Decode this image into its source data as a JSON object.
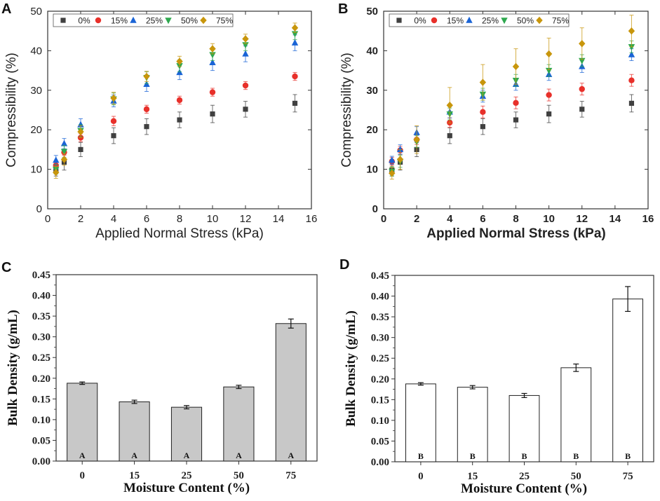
{
  "panels": {
    "A": {
      "letter": "A",
      "chart_data": {
        "type": "scatter",
        "xlabel": "Applied Normal Stress (kPa)",
        "ylabel": "Compressibility (%)",
        "xlim": [
          0,
          16
        ],
        "ylim": [
          0,
          50
        ],
        "xticks": [
          0,
          2,
          4,
          6,
          8,
          10,
          12,
          14,
          16
        ],
        "yticks": [
          0,
          10,
          20,
          30,
          40,
          50
        ],
        "x": [
          0.5,
          1,
          2,
          4,
          6,
          8,
          10,
          12,
          15
        ],
        "series": [
          {
            "name": "0%",
            "color": "#404040",
            "marker": "square",
            "values": [
              9.8,
              11.8,
              15.0,
              18.5,
              20.8,
              22.5,
              24.0,
              25.2,
              26.7
            ],
            "errors": [
              1.5,
              2.0,
              1.8,
              2.0,
              2.0,
              2.0,
              2.2,
              2.0,
              2.2
            ]
          },
          {
            "name": "15%",
            "color": "#e8302a",
            "marker": "circle",
            "values": [
              11.0,
              14.3,
              18.0,
              22.2,
              25.2,
              27.5,
              29.5,
              31.2,
              33.5
            ],
            "errors": [
              0.8,
              0.8,
              1.0,
              1.2,
              1.0,
              1.0,
              1.0,
              1.0,
              1.0
            ]
          },
          {
            "name": "25%",
            "color": "#1a64d6",
            "marker": "triangle-up",
            "values": [
              12.3,
              16.5,
              21.3,
              27.3,
              31.5,
              34.5,
              37.0,
              39.2,
              42.0
            ],
            "errors": [
              1.2,
              1.3,
              1.5,
              1.5,
              1.8,
              1.8,
              2.0,
              2.0,
              2.0
            ]
          },
          {
            "name": "50%",
            "color": "#2fa84f",
            "marker": "triangle-down",
            "values": [
              10.0,
              14.5,
              19.8,
              27.8,
              33.2,
              36.2,
              39.0,
              41.5,
              44.3
            ],
            "errors": [
              1.2,
              1.5,
              1.5,
              1.5,
              1.5,
              1.5,
              1.5,
              1.5,
              1.5
            ]
          },
          {
            "name": "75%",
            "color": "#c8960c",
            "marker": "diamond",
            "values": [
              9.2,
              12.5,
              19.5,
              28.0,
              33.5,
              37.3,
              40.5,
              43.0,
              45.8
            ],
            "errors": [
              1.5,
              1.5,
              1.5,
              1.5,
              1.3,
              1.3,
              1.3,
              1.2,
              1.2
            ]
          }
        ]
      }
    },
    "B": {
      "letter": "B",
      "chart_data": {
        "type": "scatter",
        "xlabel": "Applied Normal Stress (kPa)",
        "ylabel": "Compressibility (%)",
        "xlim": [
          0,
          16
        ],
        "ylim": [
          0,
          50
        ],
        "xticks": [
          0,
          2,
          4,
          6,
          8,
          10,
          12,
          14,
          16
        ],
        "yticks": [
          0,
          10,
          20,
          30,
          40,
          50
        ],
        "x": [
          0.5,
          1,
          2,
          4,
          6,
          8,
          10,
          12,
          15
        ],
        "series": [
          {
            "name": "0%",
            "color": "#404040",
            "marker": "square",
            "values": [
              9.8,
              11.8,
              15.0,
              18.5,
              20.8,
              22.5,
              24.0,
              25.2,
              26.7
            ],
            "errors": [
              1.5,
              2.0,
              1.8,
              2.0,
              2.0,
              2.0,
              2.2,
              2.0,
              2.2
            ]
          },
          {
            "name": "15%",
            "color": "#e8302a",
            "marker": "circle",
            "values": [
              12.0,
              14.8,
              17.5,
              21.8,
              24.5,
              26.8,
              28.8,
              30.3,
              32.5
            ],
            "errors": [
              1.0,
              1.0,
              1.2,
              1.2,
              1.5,
              1.5,
              1.5,
              1.5,
              1.5
            ]
          },
          {
            "name": "25%",
            "color": "#1a64d6",
            "marker": "triangle-up",
            "values": [
              12.3,
              15.0,
              19.3,
              24.5,
              28.5,
              31.5,
              34.0,
              36.0,
              39.0
            ],
            "errors": [
              1.0,
              1.2,
              1.5,
              1.5,
              1.5,
              1.5,
              1.5,
              1.5,
              1.5
            ]
          },
          {
            "name": "50%",
            "color": "#2fa84f",
            "marker": "triangle-down",
            "values": [
              9.5,
              12.0,
              17.0,
              24.0,
              29.0,
              32.5,
              35.0,
              37.5,
              41.0
            ],
            "errors": [
              1.2,
              1.5,
              1.5,
              1.5,
              1.5,
              1.5,
              1.5,
              1.5,
              1.5
            ]
          },
          {
            "name": "75%",
            "color": "#c8960c",
            "marker": "diamond",
            "values": [
              9.0,
              12.5,
              17.5,
              26.2,
              32.0,
              36.0,
              39.2,
              41.8,
              45.0
            ],
            "errors": [
              1.5,
              2.5,
              3.5,
              4.5,
              4.5,
              4.5,
              4.0,
              4.0,
              4.0
            ]
          }
        ]
      }
    },
    "C": {
      "letter": "C",
      "chart_data": {
        "type": "bar",
        "xlabel": "Moisture Content (%)",
        "ylabel": "Bulk Density (g/mL)",
        "ylim": [
          0,
          0.45
        ],
        "yticks": [
          "0.00",
          "0.05",
          "0.10",
          "0.15",
          "0.20",
          "0.25",
          "0.30",
          "0.35",
          "0.40",
          "0.45"
        ],
        "categories": [
          "0",
          "15",
          "25",
          "50",
          "75"
        ],
        "values": [
          0.188,
          0.143,
          0.13,
          0.179,
          0.332
        ],
        "errors": [
          0.003,
          0.004,
          0.004,
          0.004,
          0.011
        ],
        "bar_color": "#c8c8c8",
        "group_letters": [
          "A",
          "A",
          "A",
          "A",
          "A"
        ]
      }
    },
    "D": {
      "letter": "D",
      "chart_data": {
        "type": "bar",
        "xlabel": "Moisture Content (%)",
        "ylabel": "Bulk Density (g/mL)",
        "ylim": [
          0,
          0.45
        ],
        "yticks": [
          "0.00",
          "0.05",
          "0.10",
          "0.15",
          "0.20",
          "0.25",
          "0.30",
          "0.35",
          "0.40",
          "0.45"
        ],
        "categories": [
          "0",
          "15",
          "25",
          "50",
          "75"
        ],
        "values": [
          0.188,
          0.18,
          0.16,
          0.227,
          0.393
        ],
        "errors": [
          0.003,
          0.004,
          0.005,
          0.009,
          0.03
        ],
        "bar_color": "#ffffff",
        "group_letters": [
          "B",
          "B",
          "B",
          "B",
          "B"
        ]
      }
    }
  }
}
